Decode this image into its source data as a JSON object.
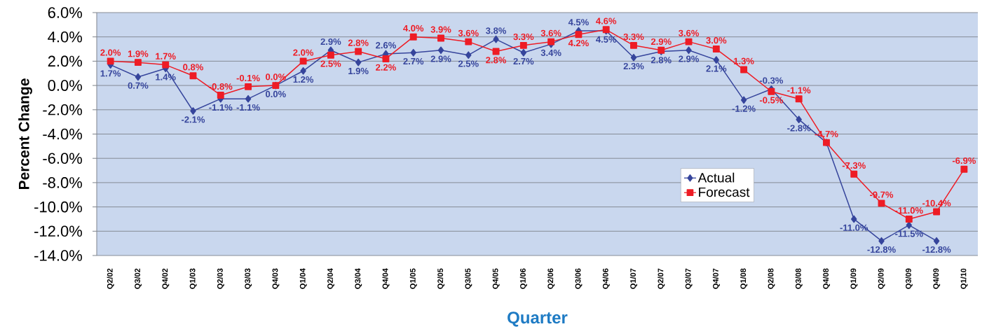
{
  "chart_data": {
    "type": "line",
    "xlabel": "Quarter",
    "ylabel": "Percent Change",
    "categories": [
      "Q2/02",
      "Q3/02",
      "Q4/02",
      "Q1/03",
      "Q2/03",
      "Q3/03",
      "Q4/03",
      "Q1/04",
      "Q2/04",
      "Q3/04",
      "Q4/04",
      "Q1/05",
      "Q2/05",
      "Q3/05",
      "Q4/05",
      "Q1/06",
      "Q2/06",
      "Q3/06",
      "Q4/06",
      "Q1/07",
      "Q2/07",
      "Q3/07",
      "Q4/07",
      "Q1/08",
      "Q2/08",
      "Q3/08",
      "Q4/08",
      "Q1/09",
      "Q2/09",
      "Q3/09",
      "Q4/09",
      "Q1/10"
    ],
    "series": [
      {
        "name": "Actual",
        "color": "#36459c",
        "marker": "diamond",
        "values": [
          1.7,
          0.7,
          1.4,
          -2.1,
          -1.1,
          -1.1,
          0.0,
          1.2,
          2.9,
          1.9,
          2.6,
          2.7,
          2.9,
          2.5,
          3.8,
          2.7,
          3.4,
          4.5,
          4.5,
          2.3,
          2.8,
          2.9,
          2.1,
          -1.2,
          -0.3,
          -2.8,
          -4.7,
          -11.0,
          -12.8,
          -11.5,
          -12.8,
          null
        ],
        "value_labels": [
          "1.7%",
          "0.7%",
          "1.4%",
          "-2.1%",
          "-1.1%",
          "-1.1%",
          "0.0%",
          "1.2%",
          "2.9%",
          "1.9%",
          "2.6%",
          "2.7%",
          "2.9%",
          "2.5%",
          "3.8%",
          "2.7%",
          "3.4%",
          "4.5%",
          "4.5%",
          "2.3%",
          "2.8%",
          "2.9%",
          "2.1%",
          "-1.2%",
          "-0.3%",
          "-2.8%",
          null,
          "-11.0%",
          "-12.8%",
          "-11.5%",
          "-12.8%",
          null
        ]
      },
      {
        "name": "Forecast",
        "color": "#ee1c25",
        "marker": "square",
        "values": [
          2.0,
          1.9,
          1.7,
          0.8,
          -0.8,
          -0.1,
          0.0,
          2.0,
          2.5,
          2.8,
          2.2,
          4.0,
          3.9,
          3.6,
          2.8,
          3.3,
          3.6,
          4.2,
          4.6,
          3.3,
          2.9,
          3.6,
          3.0,
          1.3,
          -0.5,
          -1.1,
          -4.7,
          -7.3,
          -9.7,
          -11.0,
          -10.4,
          -6.9
        ],
        "value_labels": [
          "2.0%",
          "1.9%",
          "1.7%",
          "0.8%",
          "-0.8%",
          "-0.1%",
          "0.0%",
          "2.0%",
          "2.5%",
          "2.8%",
          "2.2%",
          "4.0%",
          "3.9%",
          "3.6%",
          "2.8%",
          "3.3%",
          "3.6%",
          "4.2%",
          "4.6%",
          "3.3%",
          "2.9%",
          "3.6%",
          "3.0%",
          "1.3%",
          "-0.5%",
          "-1.1%",
          "-4.7%",
          "-7.3%",
          "-9.7%",
          "-11.0%",
          "-10.4%",
          "-6.9%"
        ]
      }
    ],
    "ylim": [
      -14,
      6
    ],
    "yticks": [
      {
        "value": -14,
        "label": "-14.0%"
      },
      {
        "value": -12,
        "label": "-12.0%"
      },
      {
        "value": -10,
        "label": "-10.0%"
      },
      {
        "value": -8,
        "label": "-8.0%"
      },
      {
        "value": -6,
        "label": "-6.0%"
      },
      {
        "value": -4,
        "label": "-4.0%"
      },
      {
        "value": -2,
        "label": "-2.0%"
      },
      {
        "value": 0,
        "label": "0.0%"
      },
      {
        "value": 2,
        "label": "2.0%"
      },
      {
        "value": 4,
        "label": "4.0%"
      },
      {
        "value": 6,
        "label": "6.0%"
      }
    ],
    "grid": "y",
    "legend": "right",
    "line_style": "solid"
  }
}
